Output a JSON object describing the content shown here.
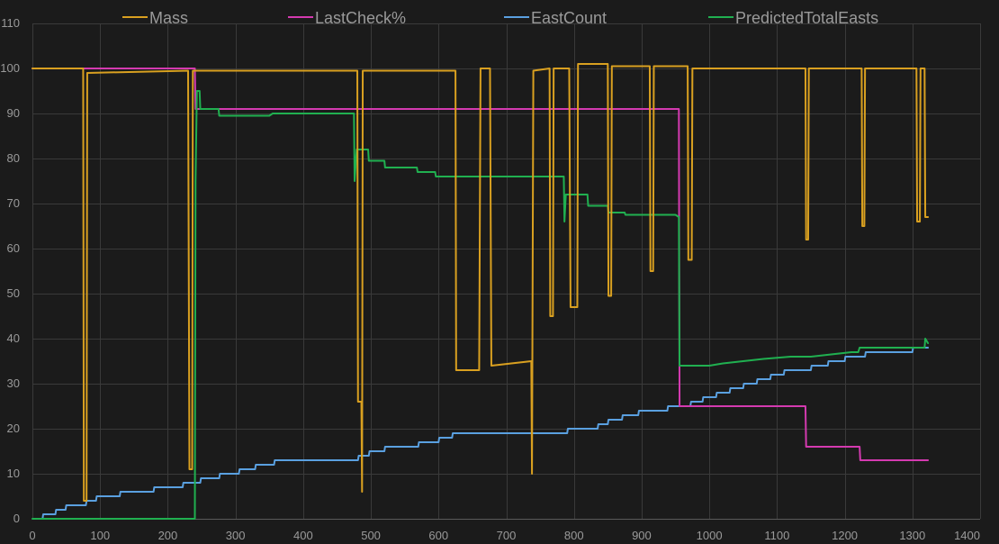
{
  "chart_data": {
    "type": "line",
    "title": "",
    "xlabel": "",
    "ylabel": "",
    "xlim": [
      0,
      1400
    ],
    "ylim": [
      0,
      110
    ],
    "grid": true,
    "legend_placement": "top",
    "x_ticks": [
      0,
      100,
      200,
      300,
      400,
      500,
      600,
      700,
      800,
      900,
      1000,
      1100,
      1200,
      1300,
      1400
    ],
    "y_ticks": [
      0,
      10,
      20,
      30,
      40,
      50,
      60,
      70,
      80,
      90,
      100,
      110
    ],
    "series": [
      {
        "name": "Mass",
        "color": "#d9a020",
        "points": [
          [
            0,
            100
          ],
          [
            75,
            100
          ],
          [
            76,
            4
          ],
          [
            80,
            4
          ],
          [
            81,
            99
          ],
          [
            230,
            99.5
          ],
          [
            232,
            11
          ],
          [
            236,
            11
          ],
          [
            237,
            99.5
          ],
          [
            480,
            99.5
          ],
          [
            481,
            26
          ],
          [
            486,
            26
          ],
          [
            487,
            6
          ],
          [
            488,
            99.5
          ],
          [
            625,
            99.5
          ],
          [
            626,
            33
          ],
          [
            660,
            33
          ],
          [
            662,
            100
          ],
          [
            676,
            100
          ],
          [
            678,
            34
          ],
          [
            737,
            35
          ],
          [
            738,
            10
          ],
          [
            740,
            99.5
          ],
          [
            764,
            100
          ],
          [
            765,
            45
          ],
          [
            769,
            45
          ],
          [
            770,
            100
          ],
          [
            793,
            100
          ],
          [
            795,
            47
          ],
          [
            805,
            47
          ],
          [
            806,
            101
          ],
          [
            850,
            101
          ],
          [
            851,
            49.5
          ],
          [
            855,
            49.5
          ],
          [
            856,
            100.5
          ],
          [
            912,
            100.5
          ],
          [
            913,
            55
          ],
          [
            917,
            55
          ],
          [
            918,
            100.5
          ],
          [
            968,
            100.5
          ],
          [
            969,
            57.5
          ],
          [
            974,
            57.5
          ],
          [
            975,
            100
          ],
          [
            1142,
            100
          ],
          [
            1143,
            62
          ],
          [
            1146,
            62
          ],
          [
            1147,
            100
          ],
          [
            1225,
            100
          ],
          [
            1226,
            65
          ],
          [
            1229,
            65
          ],
          [
            1230,
            100
          ],
          [
            1306,
            100
          ],
          [
            1307,
            66
          ],
          [
            1311,
            66
          ],
          [
            1312,
            100
          ],
          [
            1318,
            100
          ],
          [
            1319,
            67
          ],
          [
            1323,
            67
          ]
        ]
      },
      {
        "name": "LastCheck%",
        "color": "#d43ab0",
        "points": [
          [
            0,
            100
          ],
          [
            240,
            100
          ],
          [
            241,
            91
          ],
          [
            955,
            91
          ],
          [
            956,
            25
          ],
          [
            1142,
            25
          ],
          [
            1143,
            16
          ],
          [
            1222,
            16
          ],
          [
            1223,
            13
          ],
          [
            1323,
            13
          ]
        ]
      },
      {
        "name": "EastCount",
        "color": "#5aa0e0",
        "points": [
          [
            15,
            0
          ],
          [
            16,
            1
          ],
          [
            34,
            1
          ],
          [
            35,
            2
          ],
          [
            49,
            2
          ],
          [
            50,
            3
          ],
          [
            79,
            3
          ],
          [
            80,
            4
          ],
          [
            94,
            4
          ],
          [
            95,
            5
          ],
          [
            129,
            5
          ],
          [
            130,
            6
          ],
          [
            179,
            6
          ],
          [
            180,
            7
          ],
          [
            222,
            7
          ],
          [
            223,
            8
          ],
          [
            248,
            8
          ],
          [
            249,
            9
          ],
          [
            276,
            9
          ],
          [
            277,
            10
          ],
          [
            305,
            10
          ],
          [
            306,
            11
          ],
          [
            329,
            11
          ],
          [
            330,
            12
          ],
          [
            357,
            12
          ],
          [
            358,
            13
          ],
          [
            481,
            13
          ],
          [
            482,
            14
          ],
          [
            497,
            14
          ],
          [
            498,
            15
          ],
          [
            520,
            15
          ],
          [
            521,
            16
          ],
          [
            570,
            16
          ],
          [
            571,
            17
          ],
          [
            600,
            17
          ],
          [
            601,
            18
          ],
          [
            620,
            18
          ],
          [
            621,
            19
          ],
          [
            790,
            19
          ],
          [
            791,
            20
          ],
          [
            835,
            20
          ],
          [
            836,
            21
          ],
          [
            850,
            21
          ],
          [
            851,
            22
          ],
          [
            871,
            22
          ],
          [
            872,
            23
          ],
          [
            895,
            23
          ],
          [
            896,
            24
          ],
          [
            938,
            24
          ],
          [
            939,
            25
          ],
          [
            972,
            25
          ],
          [
            973,
            26
          ],
          [
            990,
            26
          ],
          [
            991,
            27
          ],
          [
            1010,
            27
          ],
          [
            1011,
            28
          ],
          [
            1030,
            28
          ],
          [
            1031,
            29
          ],
          [
            1050,
            29
          ],
          [
            1051,
            30
          ],
          [
            1070,
            30
          ],
          [
            1071,
            31
          ],
          [
            1090,
            31
          ],
          [
            1091,
            32
          ],
          [
            1110,
            32
          ],
          [
            1111,
            33
          ],
          [
            1150,
            33
          ],
          [
            1151,
            34
          ],
          [
            1175,
            34
          ],
          [
            1176,
            35
          ],
          [
            1200,
            35
          ],
          [
            1201,
            36
          ],
          [
            1230,
            36
          ],
          [
            1231,
            37
          ],
          [
            1300,
            37
          ],
          [
            1301,
            38
          ],
          [
            1323,
            38
          ]
        ]
      },
      {
        "name": "PredictedTotalEasts",
        "color": "#20b050",
        "points": [
          [
            0,
            0
          ],
          [
            240,
            0
          ],
          [
            241,
            75
          ],
          [
            243,
            95
          ],
          [
            247,
            95
          ],
          [
            248,
            91
          ],
          [
            275,
            91
          ],
          [
            276,
            89.5
          ],
          [
            300,
            89.5
          ],
          [
            350,
            89.5
          ],
          [
            355,
            90
          ],
          [
            475,
            90
          ],
          [
            476,
            75
          ],
          [
            479,
            82
          ],
          [
            496,
            82
          ],
          [
            497,
            79.5
          ],
          [
            520,
            79.5
          ],
          [
            521,
            78
          ],
          [
            568,
            78
          ],
          [
            569,
            77
          ],
          [
            595,
            77
          ],
          [
            596,
            76
          ],
          [
            785,
            76
          ],
          [
            786,
            66
          ],
          [
            788,
            72
          ],
          [
            820,
            72
          ],
          [
            821,
            69.5
          ],
          [
            850,
            69.5
          ],
          [
            851,
            68
          ],
          [
            875,
            68
          ],
          [
            876,
            67.5
          ],
          [
            950,
            67.5
          ],
          [
            955,
            67
          ],
          [
            956,
            34
          ],
          [
            980,
            34
          ],
          [
            1000,
            34
          ],
          [
            1020,
            34.5
          ],
          [
            1050,
            35
          ],
          [
            1080,
            35.5
          ],
          [
            1120,
            36
          ],
          [
            1150,
            36
          ],
          [
            1180,
            36.5
          ],
          [
            1210,
            37
          ],
          [
            1220,
            37
          ],
          [
            1222,
            38
          ],
          [
            1300,
            38
          ],
          [
            1318,
            38
          ],
          [
            1319,
            40
          ],
          [
            1323,
            39
          ]
        ]
      }
    ]
  }
}
